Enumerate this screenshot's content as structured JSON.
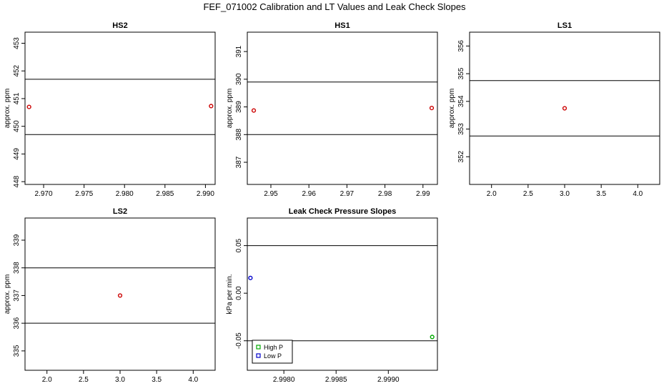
{
  "figure": {
    "title": "FEF_071002  Calibration and LT Values and Leak Check Slopes"
  },
  "chart_data": [
    {
      "type": "scatter",
      "title": "HS2",
      "xlabel": "",
      "ylabel": "approx. ppm",
      "xlim": [
        2.9677,
        2.9912
      ],
      "ylim": [
        447.9,
        453.4
      ],
      "x_ticks": [
        2.97,
        2.975,
        2.98,
        2.985,
        2.99
      ],
      "x_tick_labels": [
        "2.970",
        "2.975",
        "2.980",
        "2.985",
        "2.990"
      ],
      "y_ticks": [
        448,
        449,
        450,
        451,
        452,
        453
      ],
      "y_tick_labels": [
        "448",
        "449",
        "450",
        "451",
        "452",
        "453"
      ],
      "hlines": [
        449.7,
        451.7
      ],
      "series": [
        {
          "color": "#cc0000",
          "marker": "circle",
          "points": [
            {
              "x": 2.9682,
              "y": 450.7
            },
            {
              "x": 2.9907,
              "y": 450.73
            }
          ]
        }
      ]
    },
    {
      "type": "scatter",
      "title": "HS1",
      "xlabel": "",
      "ylabel": "approx. ppm",
      "xlim": [
        2.9438,
        2.9938
      ],
      "ylim": [
        386.2,
        391.7
      ],
      "x_ticks": [
        2.95,
        2.96,
        2.97,
        2.98,
        2.99
      ],
      "x_tick_labels": [
        "2.95",
        "2.96",
        "2.97",
        "2.98",
        "2.99"
      ],
      "y_ticks": [
        387,
        388,
        389,
        390,
        391
      ],
      "y_tick_labels": [
        "387",
        "388",
        "389",
        "390",
        "391"
      ],
      "hlines": [
        388.0,
        389.9
      ],
      "series": [
        {
          "color": "#cc0000",
          "marker": "circle",
          "points": [
            {
              "x": 2.9455,
              "y": 388.87
            },
            {
              "x": 2.9923,
              "y": 388.96
            }
          ]
        }
      ]
    },
    {
      "type": "scatter",
      "title": "LS1",
      "xlabel": "",
      "ylabel": "approx. ppm",
      "xlim": [
        1.7,
        4.3
      ],
      "ylim": [
        351.0,
        356.5
      ],
      "x_ticks": [
        2.0,
        2.5,
        3.0,
        3.5,
        4.0
      ],
      "x_tick_labels": [
        "2.0",
        "2.5",
        "3.0",
        "3.5",
        "4.0"
      ],
      "y_ticks": [
        352,
        353,
        354,
        355,
        356
      ],
      "y_tick_labels": [
        "352",
        "353",
        "354",
        "355",
        "356"
      ],
      "hlines": [
        352.75,
        354.75
      ],
      "series": [
        {
          "color": "#cc0000",
          "marker": "circle",
          "points": [
            {
              "x": 3.0,
              "y": 353.75
            }
          ]
        }
      ]
    },
    {
      "type": "scatter",
      "title": "LS2",
      "xlabel": "",
      "ylabel": "approx. ppm",
      "xlim": [
        1.7,
        4.3
      ],
      "ylim": [
        334.3,
        339.8
      ],
      "x_ticks": [
        2.0,
        2.5,
        3.0,
        3.5,
        4.0
      ],
      "x_tick_labels": [
        "2.0",
        "2.5",
        "3.0",
        "3.5",
        "4.0"
      ],
      "y_ticks": [
        335,
        336,
        337,
        338,
        339
      ],
      "y_tick_labels": [
        "335",
        "336",
        "337",
        "338",
        "339"
      ],
      "hlines": [
        336.0,
        338.0
      ],
      "series": [
        {
          "color": "#cc0000",
          "marker": "circle",
          "points": [
            {
              "x": 3.0,
              "y": 337.0
            }
          ]
        }
      ]
    },
    {
      "type": "scatter",
      "title": "Leak Check Pressure Slopes",
      "xlabel": "",
      "ylabel": "kPa per min.",
      "xlim": [
        2.99765,
        2.99947
      ],
      "ylim": [
        -0.081,
        0.079
      ],
      "x_ticks": [
        2.998,
        2.9985,
        2.999
      ],
      "x_tick_labels": [
        "2.9980",
        "2.9985",
        "2.9990"
      ],
      "y_ticks": [
        -0.05,
        0.0,
        0.05
      ],
      "y_tick_labels": [
        "-0.05",
        "0.00",
        "0.05"
      ],
      "hlines": [
        -0.05,
        0.05
      ],
      "series": [
        {
          "name": "High P",
          "color": "#00aa00",
          "marker": "circle",
          "points": [
            {
              "x": 2.99942,
              "y": -0.046
            }
          ]
        },
        {
          "name": "Low P",
          "color": "#0000cc",
          "marker": "circle",
          "points": [
            {
              "x": 2.99768,
              "y": 0.016
            }
          ]
        }
      ],
      "legend": {
        "placement": "bottom-left"
      }
    }
  ]
}
